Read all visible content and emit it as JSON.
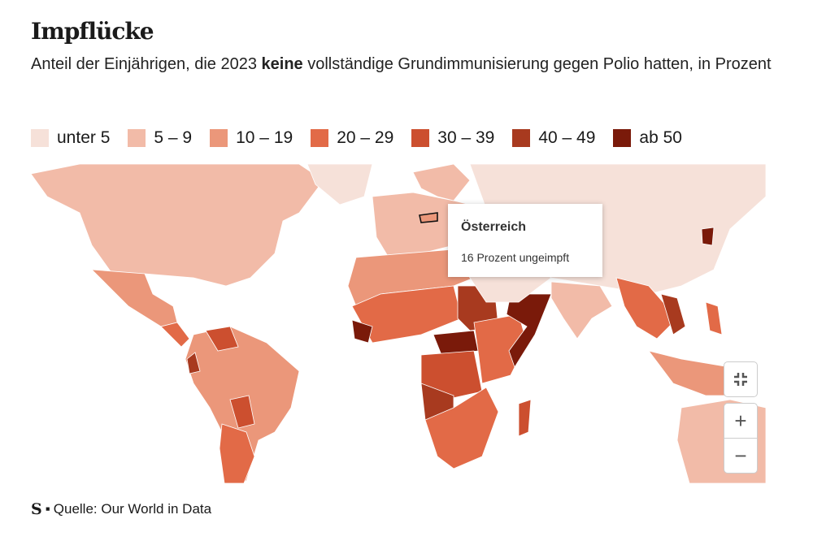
{
  "header": {
    "title": "Impflücke",
    "subtitle_before": "Anteil der Einjährigen, die 2023 ",
    "subtitle_bold": "keine",
    "subtitle_after": " vollständige Grundimmunisierung gegen Polio hatten, in Prozent"
  },
  "legend": [
    {
      "label": "unter 5",
      "color": "#f6e1d9"
    },
    {
      "label": "5 – 9",
      "color": "#f2bba8"
    },
    {
      "label": "10 – 19",
      "color": "#eb977a"
    },
    {
      "label": "20 – 29",
      "color": "#e26a47"
    },
    {
      "label": "30 – 39",
      "color": "#cc4f2f"
    },
    {
      "label": "40 – 49",
      "color": "#a83a1f"
    },
    {
      "label": "ab 50",
      "color": "#7a1a0a"
    }
  ],
  "map": {
    "no_data_color": "#d9d9d9",
    "regions": [
      {
        "id": "north-america",
        "category": 1
      },
      {
        "id": "greenland",
        "category": 0
      },
      {
        "id": "mexico",
        "category": 2
      },
      {
        "id": "central-america",
        "category": 3
      },
      {
        "id": "south-america",
        "category": 2
      },
      {
        "id": "bolivia",
        "category": 4
      },
      {
        "id": "argentina",
        "category": 3
      },
      {
        "id": "venezuela",
        "category": 4
      },
      {
        "id": "ecuador",
        "category": 5
      },
      {
        "id": "europe",
        "category": 1
      },
      {
        "id": "scandinavia",
        "category": 1
      },
      {
        "id": "austria",
        "category": 2
      },
      {
        "id": "russia-china",
        "category": 0
      },
      {
        "id": "north-korea",
        "category": 6
      },
      {
        "id": "india",
        "category": 1
      },
      {
        "id": "southeast-asia",
        "category": 3
      },
      {
        "id": "vietnam",
        "category": 5
      },
      {
        "id": "indonesia",
        "category": 2
      },
      {
        "id": "philippines",
        "category": 3
      },
      {
        "id": "australia",
        "category": 1
      },
      {
        "id": "north-africa",
        "category": 2
      },
      {
        "id": "sahel",
        "category": 3
      },
      {
        "id": "sudan",
        "category": 5
      },
      {
        "id": "central-africa",
        "category": 6
      },
      {
        "id": "congo",
        "category": 4
      },
      {
        "id": "angola",
        "category": 5
      },
      {
        "id": "east-africa",
        "category": 3
      },
      {
        "id": "somalia-yemen",
        "category": 6
      },
      {
        "id": "southern-africa",
        "category": 3
      },
      {
        "id": "madagascar",
        "category": 4
      },
      {
        "id": "middle-east",
        "category": 0
      },
      {
        "id": "west-africa-guinea",
        "category": 6
      }
    ]
  },
  "tooltip": {
    "country": "Österreich",
    "text": "16 Prozent ungeimpft"
  },
  "controls": {
    "fullscreen_icon": "collapse-icon",
    "zoom_in": "+",
    "zoom_out": "−"
  },
  "source": {
    "logo": "S",
    "label": "Quelle: Our World in Data"
  }
}
